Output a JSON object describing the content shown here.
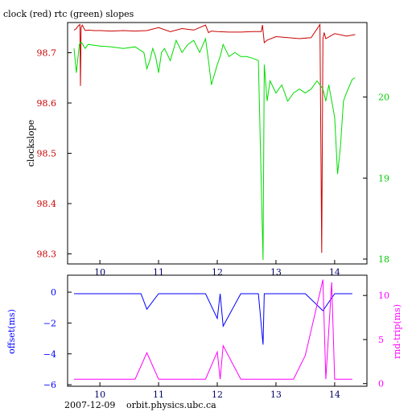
{
  "chart_data": [
    {
      "type": "line",
      "title": "clock (red) rtc (green) slopes",
      "xlabel": "",
      "ylabel": "clockslope",
      "xlim": [
        9.45,
        14.55
      ],
      "ylim": [
        98.28,
        98.76
      ],
      "y2lim": [
        17.94,
        20.92
      ],
      "grid": false,
      "x_ticks": [
        10,
        11,
        12,
        13,
        14
      ],
      "y_ticks": [
        98.3,
        98.4,
        98.5,
        98.6,
        98.7
      ],
      "y2_ticks": [
        18,
        19,
        20
      ],
      "series": [
        {
          "name": "clock",
          "axis": "left",
          "color": "#cc0000",
          "x": [
            9.56,
            9.6,
            9.62,
            9.66,
            9.67,
            9.68,
            9.7,
            9.75,
            9.8,
            9.9,
            10.0,
            10.2,
            10.4,
            10.6,
            10.8,
            11.0,
            11.2,
            11.4,
            11.6,
            11.8,
            11.85,
            11.9,
            12.0,
            12.2,
            12.4,
            12.6,
            12.75,
            12.77,
            12.8,
            12.85,
            13.0,
            13.2,
            13.4,
            13.6,
            13.75,
            13.78,
            13.8,
            13.82,
            13.85,
            14.0,
            14.2,
            14.35
          ],
          "y": [
            98.745,
            98.748,
            98.752,
            98.756,
            98.634,
            98.75,
            98.755,
            98.744,
            98.745,
            98.744,
            98.744,
            98.743,
            98.744,
            98.743,
            98.744,
            98.75,
            98.742,
            98.748,
            98.745,
            98.755,
            98.74,
            98.743,
            98.742,
            98.741,
            98.741,
            98.742,
            98.742,
            98.755,
            98.72,
            98.725,
            98.732,
            98.73,
            98.728,
            98.73,
            98.756,
            98.302,
            98.728,
            98.74,
            98.728,
            98.738,
            98.733,
            98.736
          ]
        },
        {
          "name": "rtc",
          "axis": "right",
          "color": "#00dd00",
          "x": [
            9.56,
            9.6,
            9.65,
            9.68,
            9.7,
            9.75,
            9.8,
            10.0,
            10.2,
            10.4,
            10.6,
            10.75,
            10.8,
            10.85,
            10.9,
            10.95,
            11.0,
            11.05,
            11.1,
            11.2,
            11.3,
            11.4,
            11.5,
            11.6,
            11.7,
            11.8,
            11.85,
            11.9,
            12.0,
            12.05,
            12.1,
            12.2,
            12.3,
            12.4,
            12.5,
            12.6,
            12.7,
            12.78,
            12.8,
            12.85,
            12.9,
            13.0,
            13.1,
            13.2,
            13.3,
            13.4,
            13.5,
            13.6,
            13.7,
            13.8,
            13.85,
            13.9,
            14.0,
            14.05,
            14.1,
            14.15,
            14.2,
            14.3,
            14.35
          ],
          "y": [
            20.6,
            20.3,
            20.65,
            20.68,
            20.66,
            20.6,
            20.65,
            20.63,
            20.62,
            20.6,
            20.62,
            20.55,
            20.35,
            20.45,
            20.6,
            20.5,
            20.3,
            20.55,
            20.6,
            20.45,
            20.7,
            20.55,
            20.65,
            20.7,
            20.55,
            20.72,
            20.45,
            20.15,
            20.4,
            20.5,
            20.65,
            20.5,
            20.55,
            20.5,
            20.5,
            20.48,
            20.45,
            17.99,
            20.4,
            19.95,
            20.2,
            20.05,
            20.15,
            19.95,
            20.05,
            20.1,
            20.05,
            20.1,
            20.2,
            20.1,
            19.95,
            20.15,
            19.75,
            19.05,
            19.4,
            19.95,
            20.05,
            20.22,
            20.24
          ]
        }
      ]
    },
    {
      "type": "line",
      "title": "",
      "xlabel": "",
      "ylabel": "offset(ms)",
      "y2label": "rnd-trip(ms)",
      "xlim": [
        9.45,
        14.55
      ],
      "ylim": [
        -6.1,
        1.1
      ],
      "y2lim": [
        -0.3,
        12.3
      ],
      "grid": false,
      "x_ticks": [
        10,
        11,
        12,
        13,
        14
      ],
      "y_ticks": [
        0,
        -2,
        -4,
        -6
      ],
      "y2_ticks": [
        0,
        5,
        10
      ],
      "series": [
        {
          "name": "offset",
          "axis": "left",
          "color": "#0000ff",
          "x": [
            9.56,
            9.8,
            10.0,
            10.3,
            10.7,
            10.8,
            11.0,
            11.4,
            11.8,
            12.0,
            12.05,
            12.1,
            12.4,
            12.7,
            12.78,
            12.8,
            12.85,
            13.0,
            13.3,
            13.5,
            13.8,
            14.0,
            14.3
          ],
          "y": [
            -0.1,
            -0.1,
            -0.1,
            -0.1,
            -0.1,
            -1.1,
            -0.1,
            -0.1,
            -0.1,
            -1.7,
            -0.1,
            -2.2,
            -0.1,
            -0.1,
            -3.4,
            -0.1,
            -0.1,
            -0.1,
            -0.1,
            -0.1,
            -1.2,
            -0.1,
            -0.1
          ]
        },
        {
          "name": "rnd-trip",
          "axis": "right",
          "color": "#ff00ff",
          "x": [
            9.56,
            9.8,
            10.0,
            10.3,
            10.6,
            10.8,
            11.0,
            11.4,
            11.8,
            12.0,
            12.05,
            12.1,
            12.4,
            12.8,
            13.0,
            13.3,
            13.5,
            13.8,
            13.85,
            13.95,
            14.0,
            14.3
          ],
          "y": [
            0.5,
            0.5,
            0.5,
            0.5,
            0.5,
            3.5,
            0.5,
            0.5,
            0.5,
            3.6,
            0.5,
            4.3,
            0.5,
            0.5,
            0.5,
            0.5,
            3.2,
            11.8,
            0.5,
            11.5,
            0.5,
            0.5
          ]
        }
      ]
    }
  ],
  "footer": {
    "date": "2007-12-09",
    "host": "orbit.physics.ubc.ca"
  }
}
